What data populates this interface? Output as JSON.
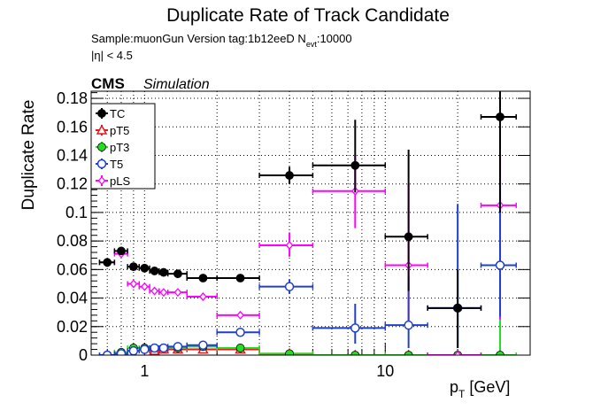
{
  "title": "Duplicate Rate of Track Candidate",
  "sample_line": {
    "prefix": "Sample:muonGun   Version tag:1b12eeD  N",
    "subscript": "evt",
    "suffix": ":10000"
  },
  "eta_cut": "|η| < 4.5",
  "cms_label": "CMS",
  "simulation_label": "Simulation",
  "chart_data": {
    "type": "scatter",
    "title": "Duplicate Rate of Track Candidate",
    "xlabel": {
      "main": "p",
      "sub": "T",
      "unit": " [GeV]"
    },
    "ylabel": "Duplicate Rate",
    "x_scale": "log",
    "xlim": [
      0.6,
      40
    ],
    "ylim": [
      0,
      0.185
    ],
    "x_ticks": [
      {
        "value": 1,
        "label": "1"
      },
      {
        "value": 10,
        "label": "10"
      }
    ],
    "y_ticks": [
      {
        "value": 0,
        "label": "0"
      },
      {
        "value": 0.02,
        "label": "0.02"
      },
      {
        "value": 0.04,
        "label": "0.04"
      },
      {
        "value": 0.06,
        "label": "0.06"
      },
      {
        "value": 0.08,
        "label": "0.08"
      },
      {
        "value": 0.1,
        "label": "0.1"
      },
      {
        "value": 0.12,
        "label": "0.12"
      },
      {
        "value": 0.14,
        "label": "0.14"
      },
      {
        "value": 0.16,
        "label": "0.16"
      },
      {
        "value": 0.18,
        "label": "0.18"
      }
    ],
    "grid": true,
    "legend_position": "top-left",
    "series": [
      {
        "name": "TC",
        "color": "#000000",
        "marker": "filled-circle",
        "points": [
          {
            "x": 0.7,
            "xlo": 0.65,
            "xhi": 0.75,
            "y": 0.065,
            "ylo": 0.062,
            "yhi": 0.068
          },
          {
            "x": 0.8,
            "xlo": 0.75,
            "xhi": 0.85,
            "y": 0.073,
            "ylo": 0.071,
            "yhi": 0.075
          },
          {
            "x": 0.9,
            "xlo": 0.85,
            "xhi": 0.95,
            "y": 0.062,
            "ylo": 0.061,
            "yhi": 0.063
          },
          {
            "x": 1.0,
            "xlo": 0.95,
            "xhi": 1.05,
            "y": 0.061,
            "ylo": 0.06,
            "yhi": 0.062
          },
          {
            "x": 1.1,
            "xlo": 1.05,
            "xhi": 1.15,
            "y": 0.059,
            "ylo": 0.058,
            "yhi": 0.06
          },
          {
            "x": 1.2,
            "xlo": 1.15,
            "xhi": 1.25,
            "y": 0.058,
            "ylo": 0.057,
            "yhi": 0.059
          },
          {
            "x": 1.375,
            "xlo": 1.25,
            "xhi": 1.5,
            "y": 0.057,
            "ylo": 0.056,
            "yhi": 0.058
          },
          {
            "x": 1.75,
            "xlo": 1.5,
            "xhi": 2.0,
            "y": 0.054,
            "ylo": 0.053,
            "yhi": 0.055
          },
          {
            "x": 2.5,
            "xlo": 2.0,
            "xhi": 3.0,
            "y": 0.054,
            "ylo": 0.053,
            "yhi": 0.055
          },
          {
            "x": 4.0,
            "xlo": 3.0,
            "xhi": 5.0,
            "y": 0.126,
            "ylo": 0.12,
            "yhi": 0.132
          },
          {
            "x": 7.5,
            "xlo": 5.0,
            "xhi": 10.0,
            "y": 0.133,
            "ylo": 0.114,
            "yhi": 0.165
          },
          {
            "x": 12.5,
            "xlo": 10.0,
            "xhi": 15.0,
            "y": 0.083,
            "ylo": 0.045,
            "yhi": 0.144
          },
          {
            "x": 20.0,
            "xlo": 15.0,
            "xhi": 25.0,
            "y": 0.033,
            "ylo": 0.005,
            "yhi": 0.06
          },
          {
            "x": 30.0,
            "xlo": 25.0,
            "xhi": 35.0,
            "y": 0.167,
            "ylo": 0.1,
            "yhi": 0.185
          }
        ]
      },
      {
        "name": "pT5",
        "color": "#e31a1c",
        "marker": "open-triangle",
        "points": [
          {
            "x": 1.1,
            "xlo": 1.05,
            "xhi": 1.15,
            "y": 0.003,
            "ylo": 0.002,
            "yhi": 0.004
          },
          {
            "x": 1.2,
            "xlo": 1.15,
            "xhi": 1.25,
            "y": 0.004,
            "ylo": 0.003,
            "yhi": 0.005
          },
          {
            "x": 1.375,
            "xlo": 1.25,
            "xhi": 1.5,
            "y": 0.004,
            "ylo": 0.003,
            "yhi": 0.005
          },
          {
            "x": 1.75,
            "xlo": 1.5,
            "xhi": 2.0,
            "y": 0.004,
            "ylo": 0.003,
            "yhi": 0.005
          },
          {
            "x": 2.5,
            "xlo": 2.0,
            "xhi": 3.0,
            "y": 0.004,
            "ylo": 0.003,
            "yhi": 0.005
          },
          {
            "x": 4.0,
            "xlo": 3.0,
            "xhi": 5.0,
            "y": 0.001,
            "ylo": 0.0,
            "yhi": 0.002
          },
          {
            "x": 7.5,
            "xlo": 5.0,
            "xhi": 10.0,
            "y": 0.0,
            "ylo": 0.0,
            "yhi": 0.0
          },
          {
            "x": 12.5,
            "xlo": 10.0,
            "xhi": 15.0,
            "y": 0.0,
            "ylo": 0.0,
            "yhi": 0.0
          },
          {
            "x": 20.0,
            "xlo": 15.0,
            "xhi": 25.0,
            "y": 0.0,
            "ylo": 0.0,
            "yhi": 0.0
          },
          {
            "x": 30.0,
            "xlo": 25.0,
            "xhi": 35.0,
            "y": 0.0,
            "ylo": 0.0,
            "yhi": 0.0
          }
        ]
      },
      {
        "name": "pT3",
        "color": "#22dd22",
        "marker": "filled-circle",
        "points": [
          {
            "x": 0.7,
            "xlo": 0.65,
            "xhi": 0.75,
            "y": 0.0,
            "ylo": 0.0,
            "yhi": 0.001
          },
          {
            "x": 0.8,
            "xlo": 0.75,
            "xhi": 0.85,
            "y": 0.002,
            "ylo": 0.001,
            "yhi": 0.003
          },
          {
            "x": 0.9,
            "xlo": 0.85,
            "xhi": 0.95,
            "y": 0.005,
            "ylo": 0.003,
            "yhi": 0.007
          },
          {
            "x": 1.0,
            "xlo": 0.95,
            "xhi": 1.05,
            "y": 0.005,
            "ylo": 0.003,
            "yhi": 0.006
          },
          {
            "x": 1.1,
            "xlo": 1.05,
            "xhi": 1.15,
            "y": 0.005,
            "ylo": 0.004,
            "yhi": 0.006
          },
          {
            "x": 1.2,
            "xlo": 1.15,
            "xhi": 1.25,
            "y": 0.005,
            "ylo": 0.004,
            "yhi": 0.006
          },
          {
            "x": 1.375,
            "xlo": 1.25,
            "xhi": 1.5,
            "y": 0.005,
            "ylo": 0.004,
            "yhi": 0.006
          },
          {
            "x": 1.75,
            "xlo": 1.5,
            "xhi": 2.0,
            "y": 0.006,
            "ylo": 0.005,
            "yhi": 0.007
          },
          {
            "x": 2.5,
            "xlo": 2.0,
            "xhi": 3.0,
            "y": 0.005,
            "ylo": 0.004,
            "yhi": 0.006
          },
          {
            "x": 4.0,
            "xlo": 3.0,
            "xhi": 5.0,
            "y": 0.001,
            "ylo": 0.0,
            "yhi": 0.002
          },
          {
            "x": 7.5,
            "xlo": 5.0,
            "xhi": 10.0,
            "y": 0.0,
            "ylo": 0.0,
            "yhi": 0.001
          },
          {
            "x": 12.5,
            "xlo": 10.0,
            "xhi": 15.0,
            "y": 0.0,
            "ylo": 0.0,
            "yhi": 0.001
          },
          {
            "x": 20.0,
            "xlo": 15.0,
            "xhi": 25.0,
            "y": 0.0,
            "ylo": 0.0,
            "yhi": 0.0
          },
          {
            "x": 30.0,
            "xlo": 25.0,
            "xhi": 35.0,
            "y": 0.0,
            "ylo": 0.0,
            "yhi": 0.029
          }
        ]
      },
      {
        "name": "T5",
        "color": "#1f3fd0",
        "marker": "open-circle",
        "points": [
          {
            "x": 0.7,
            "xlo": 0.65,
            "xhi": 0.75,
            "y": 0.0,
            "ylo": 0.0,
            "yhi": 0.001
          },
          {
            "x": 0.8,
            "xlo": 0.75,
            "xhi": 0.85,
            "y": 0.001,
            "ylo": 0.0,
            "yhi": 0.002
          },
          {
            "x": 0.9,
            "xlo": 0.85,
            "xhi": 0.95,
            "y": 0.003,
            "ylo": 0.002,
            "yhi": 0.004
          },
          {
            "x": 1.0,
            "xlo": 0.95,
            "xhi": 1.05,
            "y": 0.004,
            "ylo": 0.003,
            "yhi": 0.005
          },
          {
            "x": 1.1,
            "xlo": 1.05,
            "xhi": 1.15,
            "y": 0.005,
            "ylo": 0.004,
            "yhi": 0.006
          },
          {
            "x": 1.2,
            "xlo": 1.15,
            "xhi": 1.25,
            "y": 0.005,
            "ylo": 0.004,
            "yhi": 0.006
          },
          {
            "x": 1.375,
            "xlo": 1.25,
            "xhi": 1.5,
            "y": 0.006,
            "ylo": 0.005,
            "yhi": 0.007
          },
          {
            "x": 1.75,
            "xlo": 1.5,
            "xhi": 2.0,
            "y": 0.007,
            "ylo": 0.006,
            "yhi": 0.008
          },
          {
            "x": 2.5,
            "xlo": 2.0,
            "xhi": 3.0,
            "y": 0.016,
            "ylo": 0.015,
            "yhi": 0.017
          },
          {
            "x": 4.0,
            "xlo": 3.0,
            "xhi": 5.0,
            "y": 0.048,
            "ylo": 0.043,
            "yhi": 0.053
          },
          {
            "x": 7.5,
            "xlo": 5.0,
            "xhi": 10.0,
            "y": 0.019,
            "ylo": 0.008,
            "yhi": 0.036
          },
          {
            "x": 12.5,
            "xlo": 10.0,
            "xhi": 15.0,
            "y": 0.021,
            "ylo": 0.005,
            "yhi": 0.055
          },
          {
            "x": 20.0,
            "xlo": 15.0,
            "xhi": 25.0,
            "y": 0.033,
            "ylo": 0.005,
            "yhi": 0.106
          },
          {
            "x": 30.0,
            "xlo": 25.0,
            "xhi": 35.0,
            "y": 0.063,
            "ylo": 0.027,
            "yhi": 0.125
          }
        ]
      },
      {
        "name": "pLS",
        "color": "#ff00ff",
        "marker": "open-diamond",
        "points": [
          {
            "x": 0.7,
            "xlo": 0.65,
            "xhi": 0.75,
            "y": 0.065,
            "ylo": 0.062,
            "yhi": 0.068
          },
          {
            "x": 0.8,
            "xlo": 0.75,
            "xhi": 0.85,
            "y": 0.071,
            "ylo": 0.069,
            "yhi": 0.073
          },
          {
            "x": 0.9,
            "xlo": 0.85,
            "xhi": 0.95,
            "y": 0.05,
            "ylo": 0.049,
            "yhi": 0.051
          },
          {
            "x": 1.0,
            "xlo": 0.95,
            "xhi": 1.05,
            "y": 0.048,
            "ylo": 0.047,
            "yhi": 0.049
          },
          {
            "x": 1.1,
            "xlo": 1.05,
            "xhi": 1.15,
            "y": 0.045,
            "ylo": 0.044,
            "yhi": 0.046
          },
          {
            "x": 1.2,
            "xlo": 1.15,
            "xhi": 1.25,
            "y": 0.044,
            "ylo": 0.043,
            "yhi": 0.045
          },
          {
            "x": 1.375,
            "xlo": 1.25,
            "xhi": 1.5,
            "y": 0.044,
            "ylo": 0.043,
            "yhi": 0.045
          },
          {
            "x": 1.75,
            "xlo": 1.5,
            "xhi": 2.0,
            "y": 0.041,
            "ylo": 0.04,
            "yhi": 0.042
          },
          {
            "x": 2.5,
            "xlo": 2.0,
            "xhi": 3.0,
            "y": 0.028,
            "ylo": 0.027,
            "yhi": 0.029
          },
          {
            "x": 4.0,
            "xlo": 3.0,
            "xhi": 5.0,
            "y": 0.077,
            "ylo": 0.069,
            "yhi": 0.086
          },
          {
            "x": 7.5,
            "xlo": 5.0,
            "xhi": 10.0,
            "y": 0.115,
            "ylo": 0.089,
            "yhi": 0.14
          },
          {
            "x": 12.5,
            "xlo": 10.0,
            "xhi": 15.0,
            "y": 0.063,
            "ylo": 0.02,
            "yhi": 0.12
          },
          {
            "x": 20.0,
            "xlo": 15.0,
            "xhi": 25.0,
            "y": 0.0,
            "ylo": 0.0,
            "yhi": 0.0
          },
          {
            "x": 30.0,
            "xlo": 25.0,
            "xhi": 35.0,
            "y": 0.105,
            "ylo": 0.025,
            "yhi": 0.14
          }
        ]
      }
    ]
  }
}
